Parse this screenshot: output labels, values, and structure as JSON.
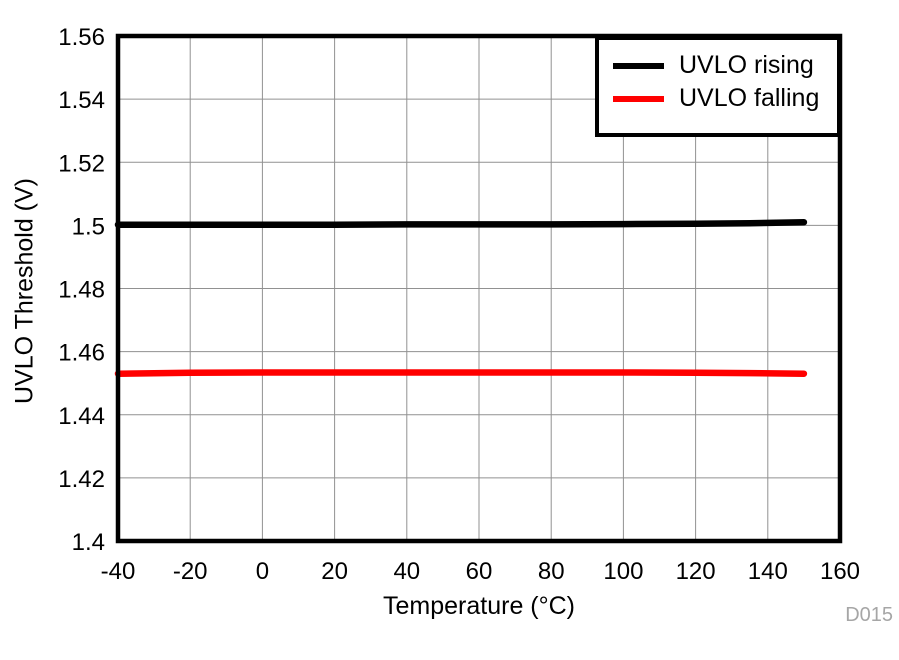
{
  "watermark": "D015",
  "chart_data": {
    "type": "line",
    "title": "",
    "xlabel": "Temperature (°C)",
    "ylabel": "UVLO Threshold (V)",
    "xlim": [
      -40,
      160
    ],
    "ylim": [
      1.4,
      1.56
    ],
    "x_ticks": [
      -40,
      -20,
      0,
      20,
      40,
      60,
      80,
      100,
      120,
      140,
      160
    ],
    "y_ticks": [
      1.4,
      1.42,
      1.44,
      1.46,
      1.48,
      1.5,
      1.52,
      1.54,
      1.56
    ],
    "grid": true,
    "gridline_color": "#919191",
    "axis_color": "#000000",
    "legend_position": "top-right",
    "line_width": 6.5,
    "series": [
      {
        "name": "UVLO rising",
        "color": "#000000",
        "points": [
          [
            -40,
            1.5002
          ],
          [
            -20,
            1.5002
          ],
          [
            0,
            1.5002
          ],
          [
            20,
            1.5002
          ],
          [
            40,
            1.5003
          ],
          [
            60,
            1.5003
          ],
          [
            80,
            1.5003
          ],
          [
            100,
            1.5004
          ],
          [
            120,
            1.5005
          ],
          [
            135,
            1.5007
          ],
          [
            150,
            1.501
          ]
        ]
      },
      {
        "name": "UVLO falling",
        "color": "#ff0000",
        "points": [
          [
            -40,
            1.453
          ],
          [
            -20,
            1.4533
          ],
          [
            0,
            1.4534
          ],
          [
            20,
            1.4534
          ],
          [
            40,
            1.4534
          ],
          [
            60,
            1.4534
          ],
          [
            80,
            1.4534
          ],
          [
            100,
            1.4534
          ],
          [
            120,
            1.4533
          ],
          [
            135,
            1.4532
          ],
          [
            150,
            1.453
          ]
        ]
      }
    ]
  }
}
